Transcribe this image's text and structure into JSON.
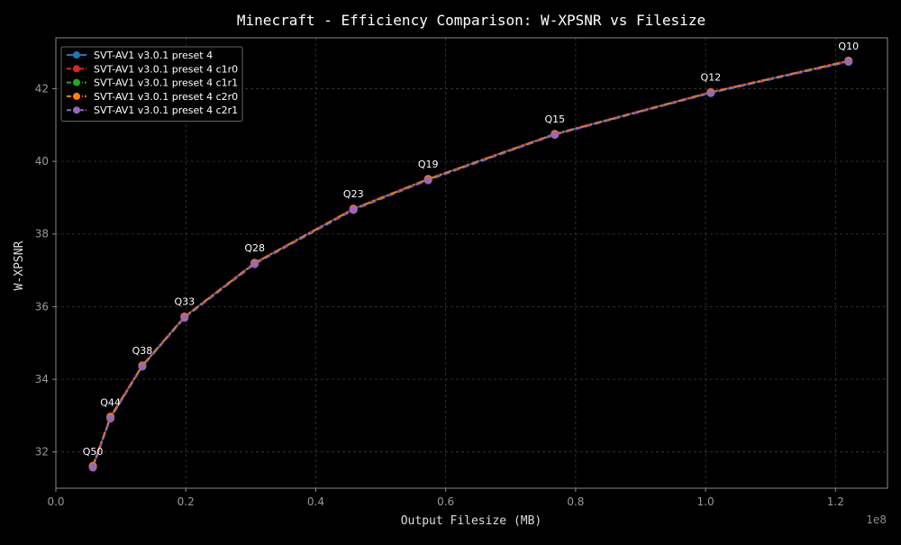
{
  "chart_data": {
    "type": "line",
    "title": "Minecraft - Efficiency Comparison: W-XPSNR vs Filesize",
    "xlabel": "Output Filesize (MB)",
    "ylabel": "W-XPSNR",
    "x_offset_label": "1e8",
    "xlim": [
      0,
      1.28
    ],
    "ylim": [
      31,
      43.4
    ],
    "x_ticks": [
      0.0,
      0.2,
      0.4,
      0.6,
      0.8,
      1.0,
      1.2
    ],
    "x_tick_labels": [
      "0.0",
      "0.2",
      "0.4",
      "0.6",
      "0.8",
      "1.0",
      "1.2"
    ],
    "y_ticks": [
      32,
      34,
      36,
      38,
      40,
      42
    ],
    "y_tick_labels": [
      "32",
      "34",
      "36",
      "38",
      "40",
      "42"
    ],
    "grid": true,
    "legend_position": "top-left",
    "point_labels": [
      "Q50",
      "Q44",
      "Q38",
      "Q33",
      "Q28",
      "Q23",
      "Q19",
      "Q15",
      "Q12",
      "Q10"
    ],
    "series": [
      {
        "name": "SVT-AV1 v3.0.1 preset 4",
        "color": "#1f77b4",
        "linestyle": "solid",
        "x": [
          0.057,
          0.084,
          0.133,
          0.198,
          0.306,
          0.458,
          0.573,
          0.768,
          1.008,
          1.22
        ],
        "y": [
          31.6,
          32.95,
          34.37,
          35.72,
          37.2,
          38.69,
          39.51,
          40.75,
          41.9,
          42.76
        ]
      },
      {
        "name": "SVT-AV1 v3.0.1 preset 4 c1r0",
        "color": "#d62728",
        "linestyle": "dashed",
        "x": [
          0.057,
          0.084,
          0.133,
          0.198,
          0.306,
          0.458,
          0.573,
          0.768,
          1.008,
          1.22
        ],
        "y": [
          31.62,
          32.98,
          34.38,
          35.73,
          37.21,
          38.7,
          39.52,
          40.76,
          41.91,
          42.77
        ]
      },
      {
        "name": "SVT-AV1 v3.0.1 preset 4 c1r1",
        "color": "#2ca02c",
        "linestyle": "dashdot",
        "x": [
          0.057,
          0.084,
          0.133,
          0.198,
          0.306,
          0.458,
          0.573,
          0.768,
          1.008,
          1.22
        ],
        "y": [
          31.6,
          32.94,
          34.36,
          35.71,
          37.19,
          38.68,
          39.5,
          40.74,
          41.89,
          42.75
        ]
      },
      {
        "name": "SVT-AV1 v3.0.1 preset 4 c2r0",
        "color": "#ff7f0e",
        "linestyle": "dashdot",
        "x": [
          0.057,
          0.084,
          0.133,
          0.198,
          0.306,
          0.458,
          0.573,
          0.768,
          1.008,
          1.22
        ],
        "y": [
          31.61,
          32.96,
          34.38,
          35.72,
          37.2,
          38.69,
          39.51,
          40.75,
          41.9,
          42.77
        ]
      },
      {
        "name": "SVT-AV1 v3.0.1 preset 4 c2r1",
        "color": "#9467bd",
        "linestyle": "dashed",
        "x": [
          0.057,
          0.084,
          0.133,
          0.198,
          0.306,
          0.458,
          0.573,
          0.768,
          1.008,
          1.22
        ],
        "y": [
          31.57,
          32.92,
          34.35,
          35.69,
          37.17,
          38.66,
          39.48,
          40.73,
          41.88,
          42.74
        ]
      }
    ]
  }
}
